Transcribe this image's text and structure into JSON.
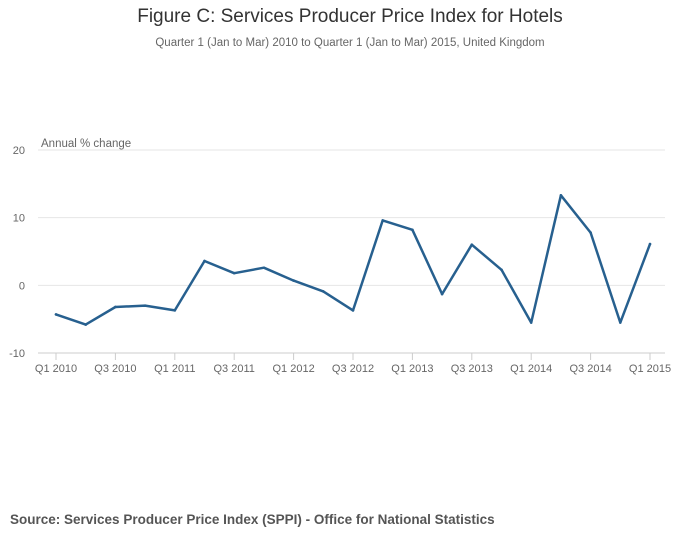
{
  "chart_data": {
    "type": "line",
    "title": "Figure C: Services Producer Price Index for Hotels",
    "subtitle": "Quarter 1 (Jan to Mar) 2010 to Quarter 1 (Jan to Mar) 2015, United Kingdom",
    "ylabel": "Annual % change",
    "xlabel": "",
    "ylim": [
      -10,
      20
    ],
    "yticks": [
      -10,
      0,
      10,
      20
    ],
    "grid": true,
    "legend": "none",
    "x": [
      "Q1 2010",
      "Q2 2010",
      "Q3 2010",
      "Q4 2010",
      "Q1 2011",
      "Q2 2011",
      "Q3 2011",
      "Q4 2011",
      "Q1 2012",
      "Q2 2012",
      "Q3 2012",
      "Q4 2012",
      "Q1 2013",
      "Q2 2013",
      "Q3 2013",
      "Q4 2013",
      "Q1 2014",
      "Q2 2014",
      "Q3 2014",
      "Q4 2014",
      "Q1 2015"
    ],
    "x_tick_labels": [
      "Q1 2010",
      "Q3 2010",
      "Q1 2011",
      "Q3 2011",
      "Q1 2012",
      "Q3 2012",
      "Q1 2013",
      "Q3 2013",
      "Q1 2014",
      "Q3 2014",
      "Q1 2015"
    ],
    "series": [
      {
        "values": [
          -4.3,
          -5.8,
          -3.2,
          -3.0,
          -3.7,
          3.6,
          1.8,
          2.6,
          0.7,
          -0.9,
          -3.7,
          9.6,
          8.2,
          -1.3,
          6.0,
          2.3,
          -5.5,
          13.3,
          7.8,
          -5.5,
          6.1
        ],
        "color": "#27608f"
      }
    ]
  },
  "source": "Source: Services Producer Price Index (SPPI) - Office for National Statistics",
  "colors": {
    "line": "#27608f",
    "grid": "#e6e6e6",
    "axis": "#cccccc",
    "text": "#666666"
  }
}
